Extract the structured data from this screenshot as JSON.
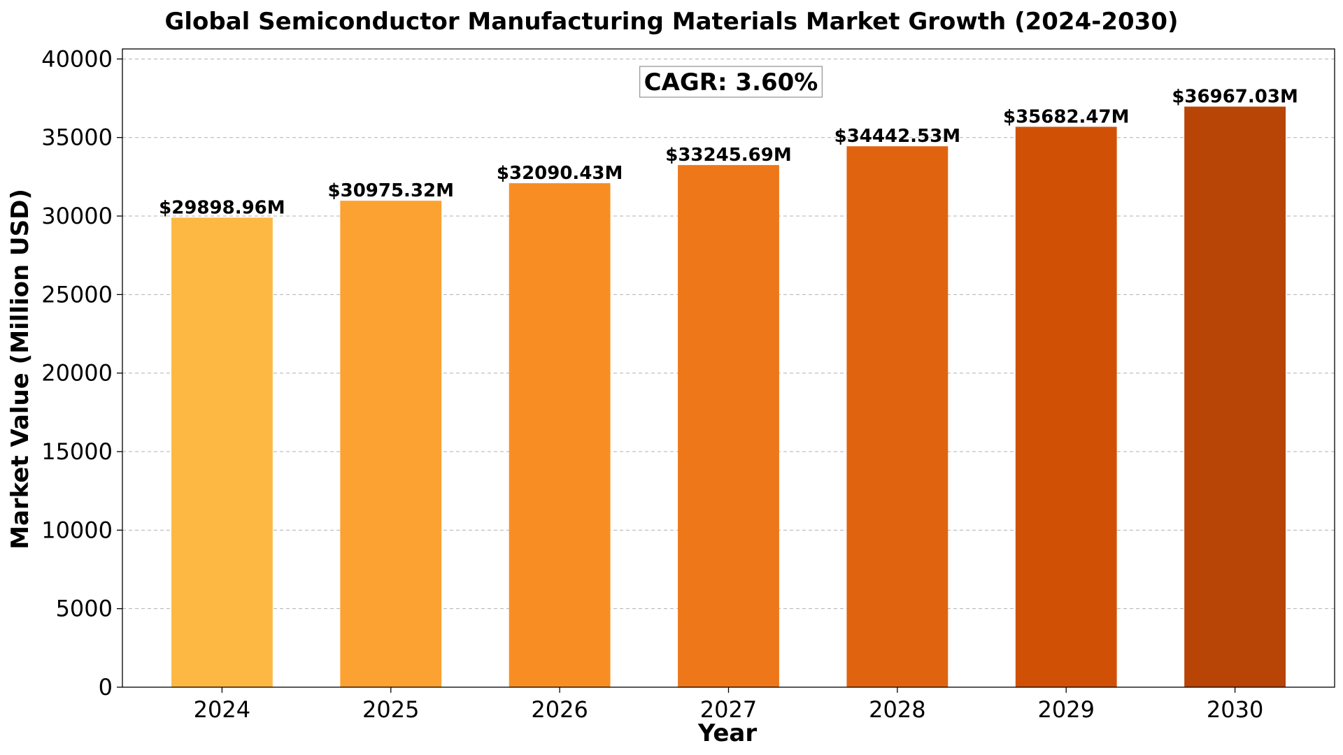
{
  "chart_data": {
    "type": "bar",
    "title": "Global Semiconductor Manufacturing Materials Market Growth (2024-2030)",
    "xlabel": "Year",
    "ylabel": "Market Value (Million USD)",
    "categories": [
      "2024",
      "2025",
      "2026",
      "2027",
      "2028",
      "2029",
      "2030"
    ],
    "values": [
      29898.96,
      30975.32,
      32090.43,
      33245.69,
      34442.53,
      35682.47,
      36967.03
    ],
    "value_labels": [
      "$29898.96M",
      "$30975.32M",
      "$32090.43M",
      "$33245.69M",
      "$34442.53M",
      "$35682.47M",
      "$36967.03M"
    ],
    "bar_colors": [
      "#FDB844",
      "#FBA232",
      "#F88E23",
      "#EE771A",
      "#E06410",
      "#D05106",
      "#B84405"
    ],
    "ylim": [
      0,
      40640
    ],
    "yticks": [
      0,
      5000,
      10000,
      15000,
      20000,
      25000,
      30000,
      35000,
      40000
    ],
    "grid": "y-dashed",
    "annotation": "CAGR: 3.60%"
  }
}
